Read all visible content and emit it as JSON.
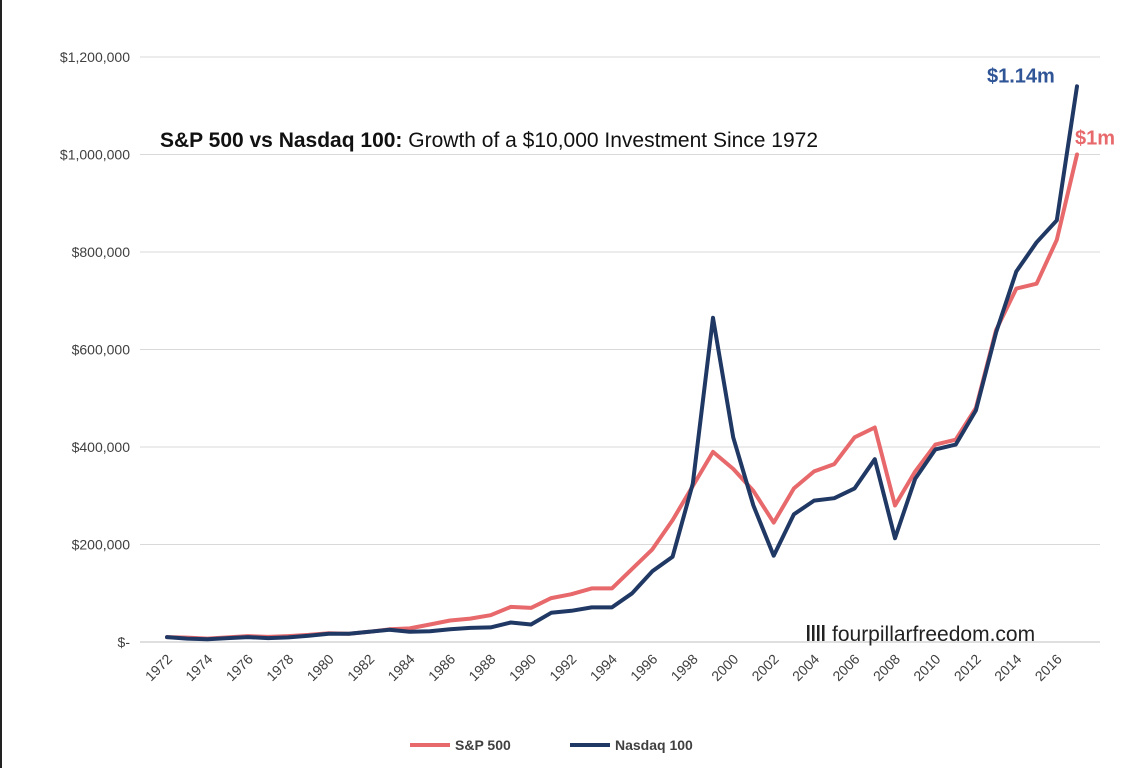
{
  "chart_data": {
    "type": "line",
    "title_bold": "S&P 500 vs Nasdaq 100:",
    "title_rest": " Growth of a $10,000 Investment Since 1972",
    "xlabel": "",
    "ylabel": "",
    "ylim": [
      0,
      1200000
    ],
    "y_ticks": [
      {
        "value": 0,
        "label": "$-"
      },
      {
        "value": 200000,
        "label": "$200,000"
      },
      {
        "value": 400000,
        "label": "$400,000"
      },
      {
        "value": 600000,
        "label": "$600,000"
      },
      {
        "value": 800000,
        "label": "$800,000"
      },
      {
        "value": 1000000,
        "label": "$1,000,000"
      },
      {
        "value": 1200000,
        "label": "$1,200,000"
      }
    ],
    "x_ticks": [
      "1972",
      "1974",
      "1976",
      "1978",
      "1980",
      "1982",
      "1984",
      "1986",
      "1988",
      "1990",
      "1992",
      "1994",
      "1996",
      "1998",
      "2000",
      "2002",
      "2004",
      "2006",
      "2008",
      "2010",
      "2012",
      "2014",
      "2016"
    ],
    "x": [
      1972,
      1973,
      1974,
      1975,
      1976,
      1977,
      1978,
      1979,
      1980,
      1981,
      1982,
      1983,
      1984,
      1985,
      1986,
      1987,
      1988,
      1989,
      1990,
      1991,
      1992,
      1993,
      1994,
      1995,
      1996,
      1997,
      1998,
      1999,
      2000,
      2001,
      2002,
      2003,
      2004,
      2005,
      2006,
      2007,
      2008,
      2009,
      2010,
      2011,
      2012,
      2013,
      2014,
      2015,
      2016,
      2017
    ],
    "grid": true,
    "legend_position": "bottom",
    "series": [
      {
        "name": "S&P 500",
        "color": "#e8696b",
        "values": [
          10000,
          9000,
          7000,
          9500,
          12000,
          10500,
          12000,
          14500,
          18000,
          17000,
          21000,
          26000,
          28000,
          36000,
          44000,
          48000,
          55000,
          72000,
          70000,
          90000,
          98000,
          110000,
          110000,
          150000,
          190000,
          250000,
          320000,
          390000,
          355000,
          310000,
          245000,
          315000,
          350000,
          365000,
          420000,
          440000,
          280000,
          350000,
          405000,
          415000,
          480000,
          640000,
          725000,
          735000,
          825000,
          1000000
        ]
      },
      {
        "name": "Nasdaq 100",
        "color": "#203864",
        "values": [
          10000,
          7000,
          5500,
          8000,
          10000,
          8000,
          9500,
          13000,
          17000,
          17000,
          21000,
          25000,
          21000,
          22000,
          26000,
          29000,
          30000,
          40000,
          36000,
          60000,
          64000,
          71000,
          71000,
          100000,
          145000,
          175000,
          325000,
          665000,
          420000,
          280000,
          177000,
          262000,
          290000,
          295000,
          315000,
          375000,
          213000,
          335000,
          395000,
          405000,
          475000,
          635000,
          760000,
          820000,
          865000,
          1140000
        ]
      }
    ],
    "end_labels": [
      {
        "series": "Nasdaq 100",
        "text": "$1.14m",
        "color": "#2f5597"
      },
      {
        "series": "S&P 500",
        "text": "$1m",
        "color": "#e8696b"
      }
    ],
    "legend": [
      "S&P 500",
      "Nasdaq 100"
    ]
  },
  "watermark": {
    "icon": "four-bars-logo-icon",
    "text": "fourpillarfreedom.com"
  }
}
